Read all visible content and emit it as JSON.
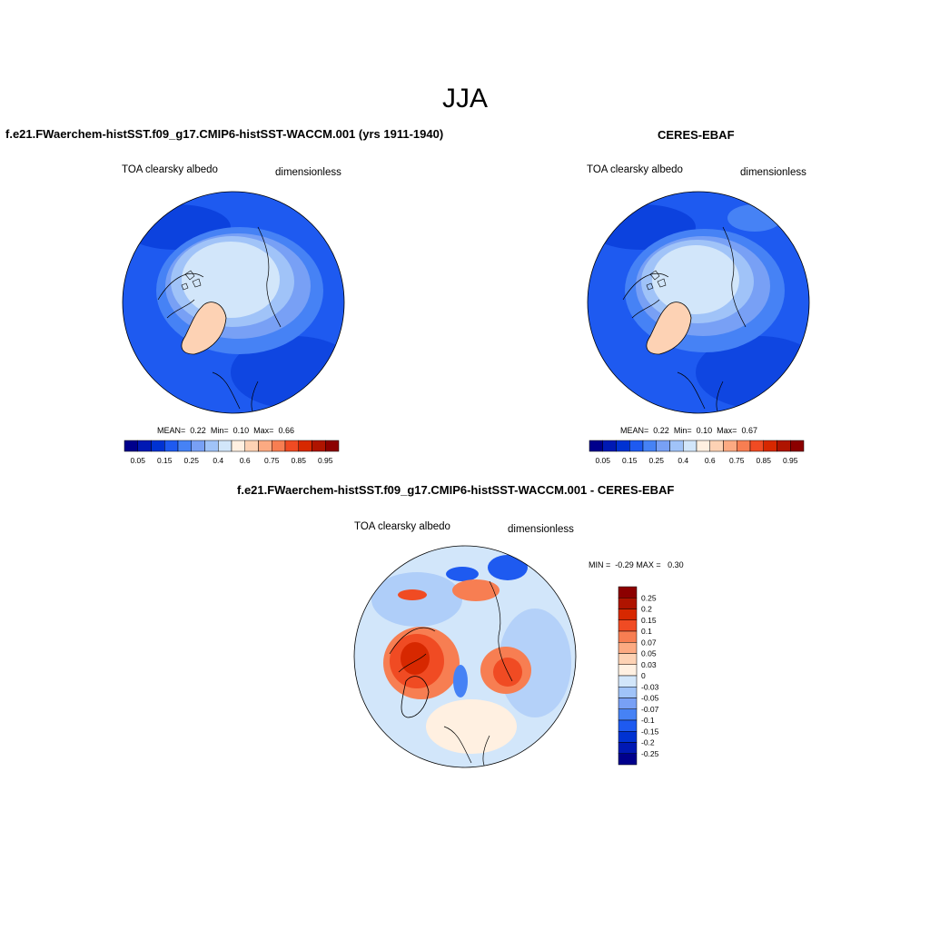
{
  "figure": {
    "season": "JJA"
  },
  "panels": {
    "model": {
      "title": "f.e21.FWaerchem-histSST.f09_g17.CMIP6-histSST-WACCM.001 (yrs 1911-1940)",
      "variable": "TOA clearsky albedo",
      "units": "dimensionless",
      "stats": {
        "mean_label": "MEAN=",
        "mean": "0.22",
        "min_label": "Min=",
        "min": "0.10",
        "max_label": "Max=",
        "max": "0.66"
      }
    },
    "obs": {
      "title": "CERES-EBAF",
      "variable": "TOA clearsky albedo",
      "units": "dimensionless",
      "stats": {
        "mean_label": "MEAN=",
        "mean": "0.22",
        "min_label": "Min=",
        "min": "0.10",
        "max_label": "Max=",
        "max": "0.67"
      }
    },
    "diff": {
      "title": "f.e21.FWaerchem-histSST.f09_g17.CMIP6-histSST-WACCM.001 - CERES-EBAF",
      "variable": "TOA clearsky albedo",
      "units": "dimensionless",
      "stats": {
        "min_label": "MIN =",
        "min": "-0.29",
        "max_label": "MAX =",
        "max": "0.30"
      }
    }
  },
  "colorbars": {
    "absolute": {
      "colors": [
        "#00008c",
        "#0019b4",
        "#0032d2",
        "#1e5af0",
        "#4682f5",
        "#78a0f5",
        "#a0c3f8",
        "#d2e6fa",
        "#fff0e1",
        "#fdd2b4",
        "#fcaa82",
        "#f77e52",
        "#f04b23",
        "#d72800",
        "#af1400",
        "#8c0000"
      ],
      "labels": [
        "0.05",
        "0.15",
        "0.25",
        "0.4",
        "0.6",
        "0.75",
        "0.85",
        "0.95"
      ]
    },
    "difference": {
      "colors": [
        "#00008c",
        "#0019b4",
        "#0032d2",
        "#1e5af0",
        "#4682f5",
        "#78a0f5",
        "#a0c3f8",
        "#d2e6fa",
        "#fff0e1",
        "#fdd2b4",
        "#fcaa82",
        "#f77e52",
        "#f04b23",
        "#d72800",
        "#af1400",
        "#8c0000"
      ],
      "labels": [
        "0.25",
        "0.2",
        "0.15",
        "0.1",
        "0.07",
        "0.05",
        "0.03",
        "0",
        "-0.03",
        "-0.05",
        "-0.07",
        "-0.1",
        "-0.15",
        "-0.2",
        "-0.25"
      ]
    }
  }
}
